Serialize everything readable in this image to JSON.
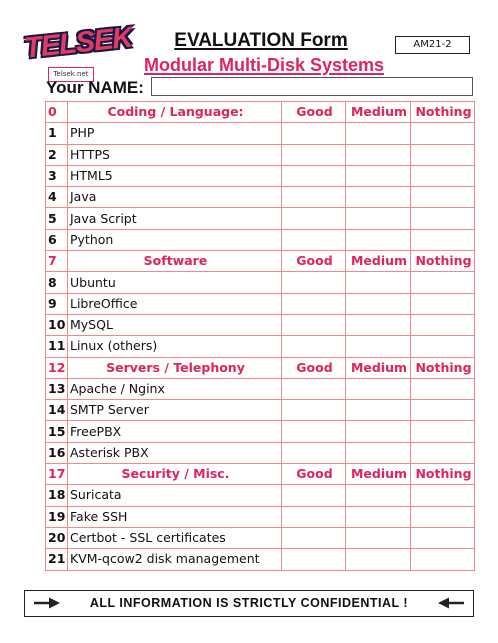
{
  "header": {
    "logo_text": "TELSEK",
    "logo_url": "Telsek.net",
    "title": "EVALUATION Form",
    "code": "AM21-2",
    "subtitle": "Modular Multi-Disk Systems",
    "name_label": "Your NAME:",
    "name_value": ""
  },
  "columns": {
    "good": "Good",
    "medium": "Medium",
    "nothing": "Nothing"
  },
  "sections": [
    {
      "num": "0",
      "title": "Coding / Language:",
      "items": [
        {
          "num": "1",
          "label": "PHP"
        },
        {
          "num": "2",
          "label": "HTTPS"
        },
        {
          "num": "3",
          "label": "HTML5"
        },
        {
          "num": "4",
          "label": "Java"
        },
        {
          "num": "5",
          "label": "Java Script"
        },
        {
          "num": "6",
          "label": "Python"
        }
      ]
    },
    {
      "num": "7",
      "title": "Software",
      "items": [
        {
          "num": "8",
          "label": "Ubuntu"
        },
        {
          "num": "9",
          "label": "LibreOffice"
        },
        {
          "num": "10",
          "label": "MySQL"
        },
        {
          "num": "11",
          "label": "Linux (others)"
        }
      ]
    },
    {
      "num": "12",
      "title": "Servers / Telephony",
      "items": [
        {
          "num": "13",
          "label": "Apache / Nginx"
        },
        {
          "num": "14",
          "label": "SMTP Server"
        },
        {
          "num": "15",
          "label": "FreePBX"
        },
        {
          "num": "16",
          "label": "Asterisk PBX"
        }
      ]
    },
    {
      "num": "17",
      "title": "Security / Misc.",
      "items": [
        {
          "num": "18",
          "label": "Suricata"
        },
        {
          "num": "19",
          "label": "Fake SSH"
        },
        {
          "num": "20",
          "label": "Certbot - SSL certificates"
        },
        {
          "num": "21",
          "label": "KVM-qcow2 disk management"
        }
      ]
    }
  ],
  "footer": {
    "text": "ALL INFORMATION IS STRICTLY CONFIDENTIAL !"
  },
  "colors": {
    "accent": "#e0245e",
    "grid": "#f08a8a",
    "ink": "#111111"
  },
  "icons": {
    "footer_left": "arrow-right-icon",
    "footer_right": "arrow-left-icon"
  }
}
